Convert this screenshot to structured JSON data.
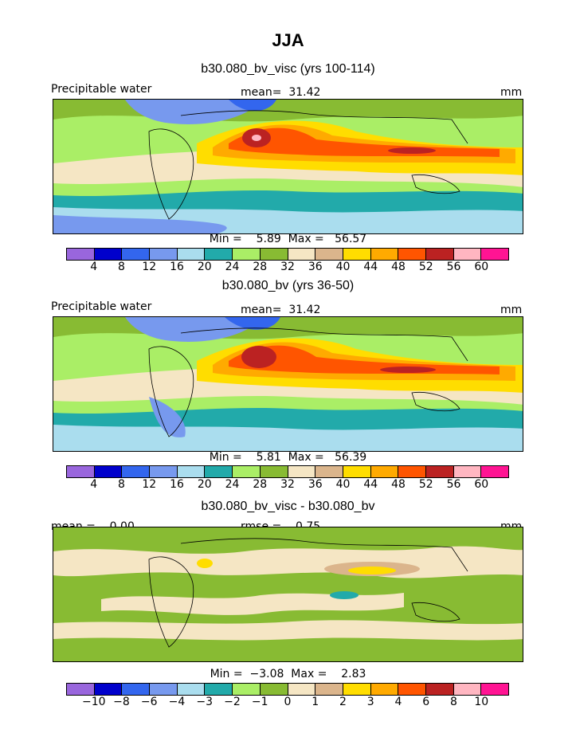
{
  "figure": {
    "title": "JJA",
    "colors_main": [
      "#9966dd",
      "#0000cc",
      "#3366ee",
      "#7799ee",
      "#aaddee",
      "#22aaaa",
      "#aaee66",
      "#88bb33",
      "#f5e6c4",
      "#dbb58c",
      "#ffdd00",
      "#ffaa00",
      "#ff5500",
      "#bb2222",
      "#ffb6c1",
      "#ff1493"
    ],
    "colors_diff": [
      "#9966dd",
      "#0000cc",
      "#3366ee",
      "#7799ee",
      "#aaddee",
      "#22aaaa",
      "#aaee66",
      "#88bb33",
      "#f5e6c4",
      "#dbb58c",
      "#ffdd00",
      "#ffaa00",
      "#ff5500",
      "#bb2222",
      "#ffb6c1",
      "#ff1493"
    ]
  },
  "panel1": {
    "title": "b30.080_bv_visc (yrs 100-114)",
    "left_label": "Precipitable water",
    "center_label": "mean=  31.42",
    "right_label": "mm",
    "minmax": "Min =    5.89  Max =   56.57",
    "ticks": [
      "4",
      "8",
      "12",
      "16",
      "20",
      "24",
      "28",
      "32",
      "36",
      "40",
      "44",
      "48",
      "52",
      "56",
      "60"
    ]
  },
  "panel2": {
    "title": "b30.080_bv (yrs 36-50)",
    "left_label": "Precipitable water",
    "center_label": "mean=  31.42",
    "right_label": "mm",
    "minmax": "Min =    5.81  Max =   56.39",
    "ticks": [
      "4",
      "8",
      "12",
      "16",
      "20",
      "24",
      "28",
      "32",
      "36",
      "40",
      "44",
      "48",
      "52",
      "56",
      "60"
    ]
  },
  "panel3": {
    "title": "b30.080_bv_visc - b30.080_bv",
    "left_label": "mean =    0.00",
    "center_label": "rmse =    0.75",
    "right_label": "mm",
    "minmax": "Min =  −3.08  Max =    2.83",
    "ticks": [
      "−10",
      "−8",
      "−6",
      "−4",
      "−3",
      "−2",
      "−1",
      "0",
      "1",
      "2",
      "3",
      "4",
      "6",
      "8",
      "10"
    ]
  }
}
